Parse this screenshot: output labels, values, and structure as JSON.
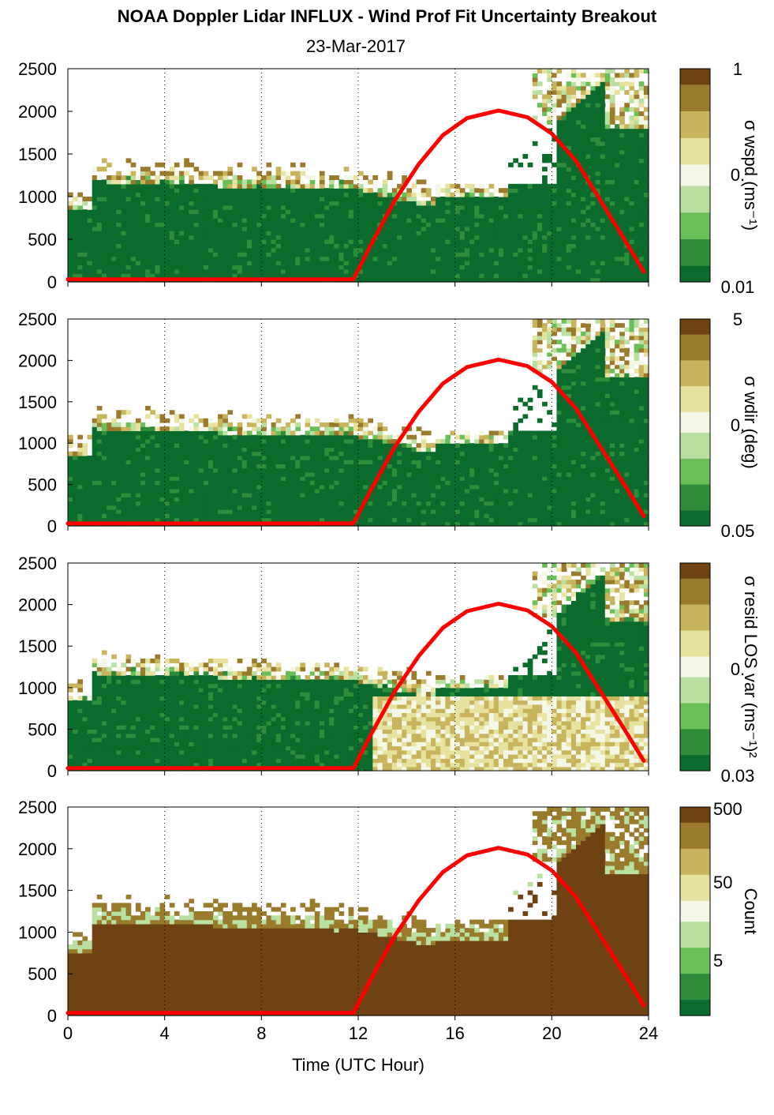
{
  "title": "NOAA Doppler Lidar INFLUX - Wind Prof Fit Uncertainty Breakout",
  "subtitle": "23-Mar-2017",
  "colors": {
    "solar_curve": "#ff0000",
    "grid": "#000000",
    "colormap": [
      "#0b6b2c",
      "#2e8c3a",
      "#6bbf59",
      "#b9e0a0",
      "#f4f7e6",
      "#e7e2a0",
      "#c7b45c",
      "#9a7a2c",
      "#6e4212"
    ]
  },
  "chart_data": [
    {
      "type": "heatmap",
      "title": "",
      "xlabel": "",
      "ylabel": "",
      "xlim": [
        0,
        24
      ],
      "ylim": [
        0,
        2500
      ],
      "xticks": [
        0,
        4,
        8,
        12,
        16,
        20,
        24
      ],
      "yticks": [
        0,
        500,
        1000,
        1500,
        2000,
        2500
      ],
      "grid": "dotted vertical",
      "colorbar": {
        "label": "σ wspd (ms⁻¹)",
        "ticks": [
          "1",
          "0.",
          "0.01"
        ]
      },
      "overlay_series": {
        "x": [
          0,
          11.8,
          12.5,
          13.5,
          14.5,
          15.5,
          16.5,
          17.8,
          19,
          20,
          21,
          22,
          23,
          23.8
        ],
        "y": [
          30,
          30,
          420,
          950,
          1380,
          1720,
          1920,
          2010,
          1930,
          1740,
          1420,
          960,
          500,
          120
        ]
      }
    },
    {
      "type": "heatmap",
      "title": "",
      "xlabel": "",
      "ylabel": "",
      "xlim": [
        0,
        24
      ],
      "ylim": [
        0,
        2500
      ],
      "xticks": [
        0,
        4,
        8,
        12,
        16,
        20,
        24
      ],
      "yticks": [
        0,
        500,
        1000,
        1500,
        2000,
        2500
      ],
      "grid": "dotted vertical",
      "colorbar": {
        "label": "σ wdir (deg)",
        "ticks": [
          "5",
          "0.",
          "0.05"
        ]
      },
      "overlay_series": {
        "x": [
          0,
          11.8,
          12.5,
          13.5,
          14.5,
          15.5,
          16.5,
          17.8,
          19,
          20,
          21,
          22,
          23,
          23.8
        ],
        "y": [
          30,
          30,
          420,
          950,
          1380,
          1720,
          1920,
          2010,
          1930,
          1740,
          1420,
          960,
          500,
          120
        ]
      }
    },
    {
      "type": "heatmap",
      "title": "",
      "xlabel": "",
      "ylabel": "",
      "xlim": [
        0,
        24
      ],
      "ylim": [
        0,
        2500
      ],
      "xticks": [
        0,
        4,
        8,
        12,
        16,
        20,
        24
      ],
      "yticks": [
        0,
        500,
        1000,
        1500,
        2000,
        2500
      ],
      "grid": "dotted vertical",
      "colorbar": {
        "label": "σ resid LOS var (ms⁻¹)²",
        "ticks": [
          "",
          "0.",
          "0.03"
        ]
      },
      "overlay_series": {
        "x": [
          0,
          11.8,
          12.5,
          13.5,
          14.5,
          15.5,
          16.5,
          17.8,
          19,
          20,
          21,
          22,
          23,
          23.8
        ],
        "y": [
          30,
          30,
          420,
          950,
          1380,
          1720,
          1920,
          2010,
          1930,
          1740,
          1420,
          960,
          500,
          120
        ]
      }
    },
    {
      "type": "heatmap",
      "title": "",
      "xlabel": "Time (UTC Hour)",
      "ylabel": "",
      "xlim": [
        0,
        24
      ],
      "ylim": [
        0,
        2500
      ],
      "xticks": [
        0,
        4,
        8,
        12,
        16,
        20,
        24
      ],
      "yticks": [
        0,
        500,
        1000,
        1500,
        2000,
        2500
      ],
      "grid": "dotted vertical",
      "colorbar": {
        "label": "Count",
        "ticks": [
          "500",
          "50",
          "5"
        ]
      },
      "overlay_series": {
        "x": [
          0,
          11.8,
          12.5,
          13.5,
          14.5,
          15.5,
          16.5,
          17.8,
          19,
          20,
          21,
          22,
          23,
          23.8
        ],
        "y": [
          30,
          30,
          420,
          950,
          1380,
          1720,
          1920,
          2010,
          1930,
          1740,
          1420,
          960,
          500,
          120
        ]
      }
    }
  ]
}
